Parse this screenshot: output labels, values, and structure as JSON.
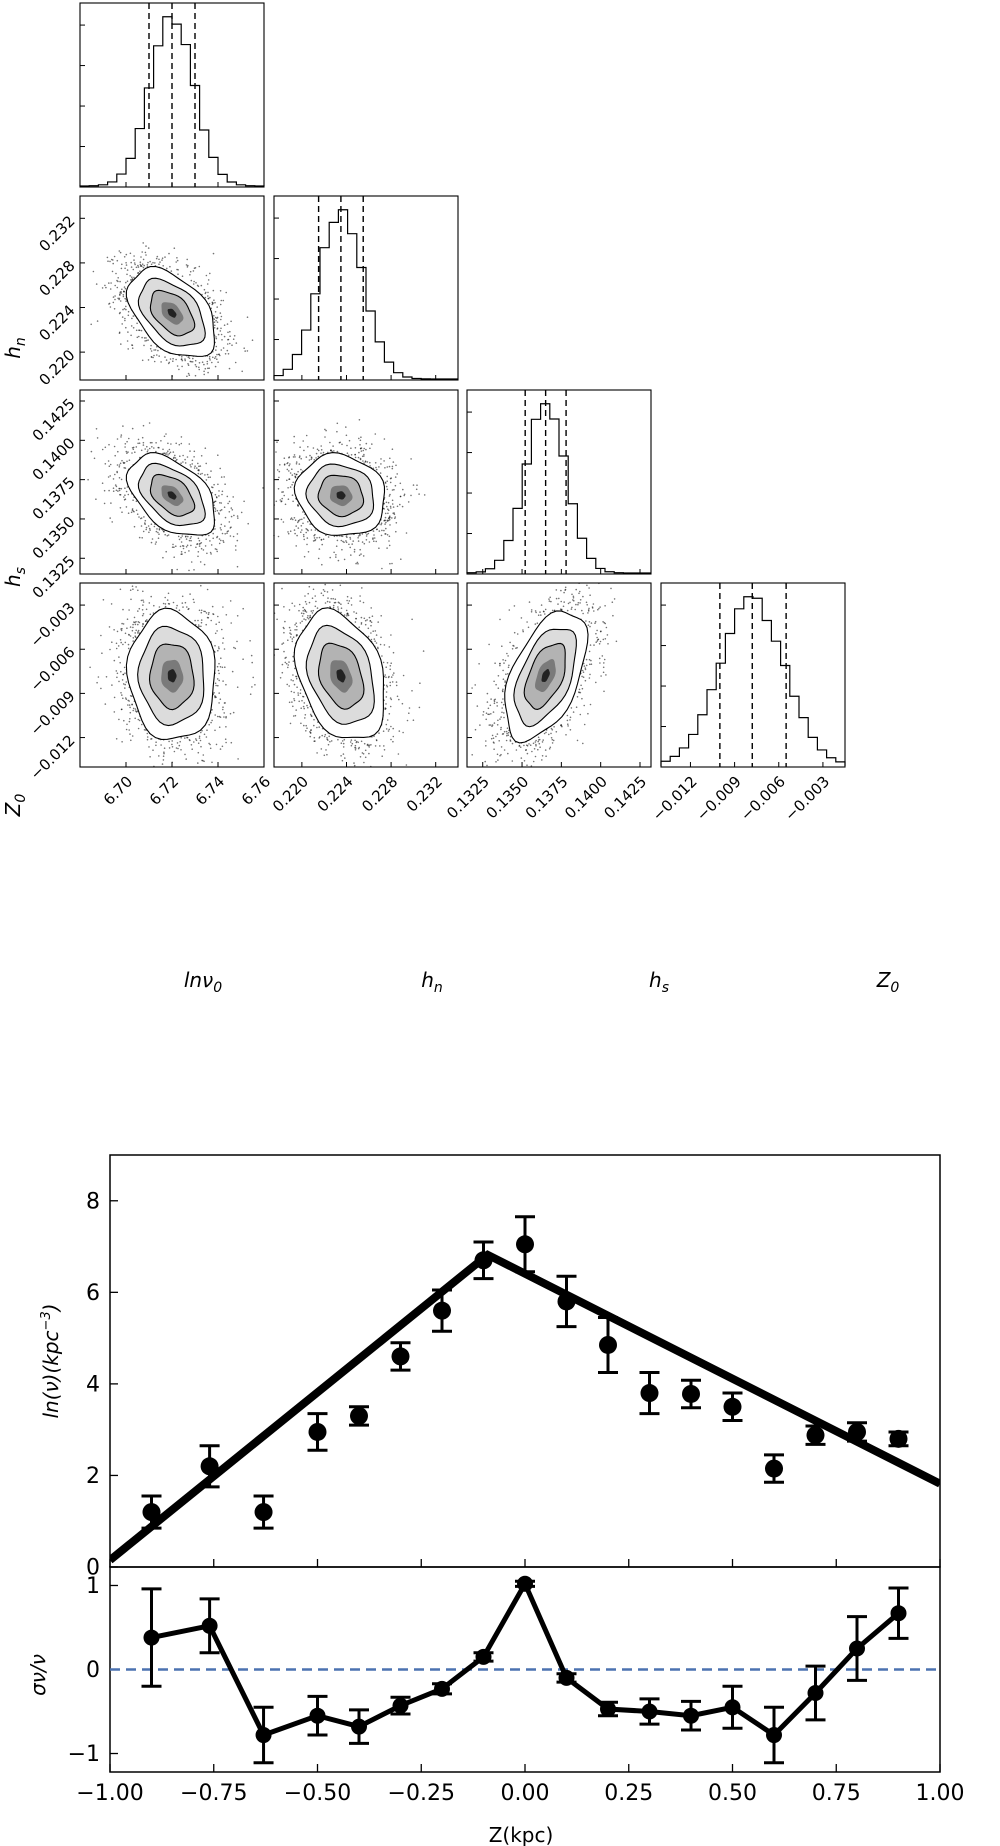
{
  "chart_data": [
    {
      "type": "corner",
      "title": "",
      "parameters": [
        {
          "name": "lnν₀",
          "label_main": "lnν",
          "label_sub": "0",
          "median": 6.72,
          "q16": 6.71,
          "q84": 6.73,
          "sigma": 0.0095,
          "ticks": [
            "6.70",
            "6.72",
            "6.74",
            "6.76"
          ],
          "range": [
            6.68,
            6.76
          ],
          "tick_values": [
            6.7,
            6.72,
            6.74,
            6.76
          ]
        },
        {
          "name": "hₙ",
          "label_main": "h",
          "label_sub": "n",
          "median": 0.2235,
          "q16": 0.2215,
          "q84": 0.2255,
          "sigma": 0.002,
          "ticks": [
            "0.220",
            "0.224",
            "0.228",
            "0.232"
          ],
          "range": [
            0.2175,
            0.234
          ],
          "tick_values": [
            0.22,
            0.224,
            0.228,
            0.232
          ]
        },
        {
          "name": "hₛ",
          "label_main": "h",
          "label_sub": "s",
          "median": 0.1365,
          "q16": 0.1352,
          "q84": 0.1378,
          "sigma": 0.0013,
          "ticks": [
            "0.1325",
            "0.1350",
            "0.1375",
            "0.1400",
            "0.1425"
          ],
          "range": [
            0.1315,
            0.1432
          ],
          "tick_values": [
            0.1325,
            0.135,
            0.1375,
            0.14,
            0.1425
          ]
        },
        {
          "name": "Z₀",
          "label_main": "Z",
          "label_sub": "0",
          "median": -0.0078,
          "q16": -0.01,
          "q84": -0.0055,
          "sigma": 0.0022,
          "ticks": [
            "−0.012",
            "−0.009",
            "−0.006",
            "−0.003"
          ],
          "range": [
            -0.014,
            -0.0015
          ],
          "tick_values": [
            -0.012,
            -0.009,
            -0.006,
            -0.003
          ]
        }
      ],
      "correlations": [
        {
          "pair": [
            "lnν₀",
            "hₙ"
          ],
          "rho": -0.45
        },
        {
          "pair": [
            "lnν₀",
            "hₛ"
          ],
          "rho": -0.45
        },
        {
          "pair": [
            "hₙ",
            "hₛ"
          ],
          "rho": -0.1
        },
        {
          "pair": [
            "lnν₀",
            "Z₀"
          ],
          "rho": -0.05
        },
        {
          "pair": [
            "hₙ",
            "Z₀"
          ],
          "rho": -0.3
        },
        {
          "pair": [
            "hₛ",
            "Z₀"
          ],
          "rho": 0.5
        }
      ]
    },
    {
      "type": "scatter",
      "title": "",
      "xlabel": "Z(kpc)",
      "ylabel_main": "ln(ν)(kpc",
      "ylabel_exp": "−3",
      "xlim": [
        -1.0,
        1.0
      ],
      "ylim": [
        0,
        9
      ],
      "x_ticks": [
        "−1.00",
        "−0.75",
        "−0.50",
        "−0.25",
        "0.00",
        "0.25",
        "0.50",
        "0.75",
        "1.00"
      ],
      "x_tick_values": [
        -1.0,
        -0.75,
        -0.5,
        -0.25,
        0.0,
        0.25,
        0.5,
        0.75,
        1.0
      ],
      "y_ticks": [
        "0",
        "2",
        "4",
        "6",
        "8"
      ],
      "y_tick_values": [
        0,
        2,
        4,
        6,
        8
      ],
      "points": [
        {
          "x": -0.9,
          "y": 1.2,
          "err": 0.35
        },
        {
          "x": -0.76,
          "y": 2.2,
          "err": 0.45
        },
        {
          "x": -0.63,
          "y": 1.2,
          "err": 0.35
        },
        {
          "x": -0.5,
          "y": 2.95,
          "err": 0.4
        },
        {
          "x": -0.4,
          "y": 3.3,
          "err": 0.2
        },
        {
          "x": -0.3,
          "y": 4.6,
          "err": 0.3
        },
        {
          "x": -0.2,
          "y": 5.6,
          "err": 0.45
        },
        {
          "x": -0.1,
          "y": 6.7,
          "err": 0.4
        },
        {
          "x": 0.0,
          "y": 7.05,
          "err": 0.6
        },
        {
          "x": 0.1,
          "y": 5.8,
          "err": 0.55
        },
        {
          "x": 0.2,
          "y": 4.85,
          "err": 0.6
        },
        {
          "x": 0.3,
          "y": 3.8,
          "err": 0.45
        },
        {
          "x": 0.4,
          "y": 3.78,
          "err": 0.3
        },
        {
          "x": 0.5,
          "y": 3.5,
          "err": 0.3
        },
        {
          "x": 0.6,
          "y": 2.15,
          "err": 0.3
        },
        {
          "x": 0.7,
          "y": 2.88,
          "err": 0.2
        },
        {
          "x": 0.8,
          "y": 2.95,
          "err": 0.2
        },
        {
          "x": 0.9,
          "y": 2.8,
          "err": 0.15
        }
      ],
      "model_line": [
        {
          "x": -1.0,
          "y": 0.15
        },
        {
          "x": -0.09,
          "y": 6.82
        },
        {
          "x": 1.0,
          "y": 1.82
        }
      ]
    },
    {
      "type": "line",
      "title": "",
      "xlabel": "Z(kpc)",
      "ylabel": "σν/ν",
      "xlim": [
        -1.0,
        1.0
      ],
      "ylim": [
        -1.22,
        1.22
      ],
      "y_ticks": [
        "−1",
        "0",
        "1"
      ],
      "y_tick_values": [
        -1,
        0,
        1
      ],
      "reference_line": {
        "y": 0,
        "color": "#4c72b0",
        "style": "dashed"
      },
      "points": [
        {
          "x": -0.9,
          "y": 0.38,
          "err": 0.58
        },
        {
          "x": -0.76,
          "y": 0.52,
          "err": 0.32
        },
        {
          "x": -0.63,
          "y": -0.78,
          "err": 0.33
        },
        {
          "x": -0.5,
          "y": -0.55,
          "err": 0.23
        },
        {
          "x": -0.4,
          "y": -0.68,
          "err": 0.2
        },
        {
          "x": -0.3,
          "y": -0.43,
          "err": 0.1
        },
        {
          "x": -0.2,
          "y": -0.23,
          "err": 0.06
        },
        {
          "x": -0.1,
          "y": 0.15,
          "err": 0.05
        },
        {
          "x": 0.0,
          "y": 1.02,
          "err": 0.03
        },
        {
          "x": 0.1,
          "y": -0.1,
          "err": 0.05
        },
        {
          "x": 0.2,
          "y": -0.47,
          "err": 0.08
        },
        {
          "x": 0.3,
          "y": -0.5,
          "err": 0.15
        },
        {
          "x": 0.4,
          "y": -0.55,
          "err": 0.17
        },
        {
          "x": 0.5,
          "y": -0.45,
          "err": 0.25
        },
        {
          "x": 0.6,
          "y": -0.78,
          "err": 0.33
        },
        {
          "x": 0.7,
          "y": -0.28,
          "err": 0.32
        },
        {
          "x": 0.8,
          "y": 0.25,
          "err": 0.38
        },
        {
          "x": 0.9,
          "y": 0.67,
          "err": 0.3
        }
      ]
    }
  ]
}
